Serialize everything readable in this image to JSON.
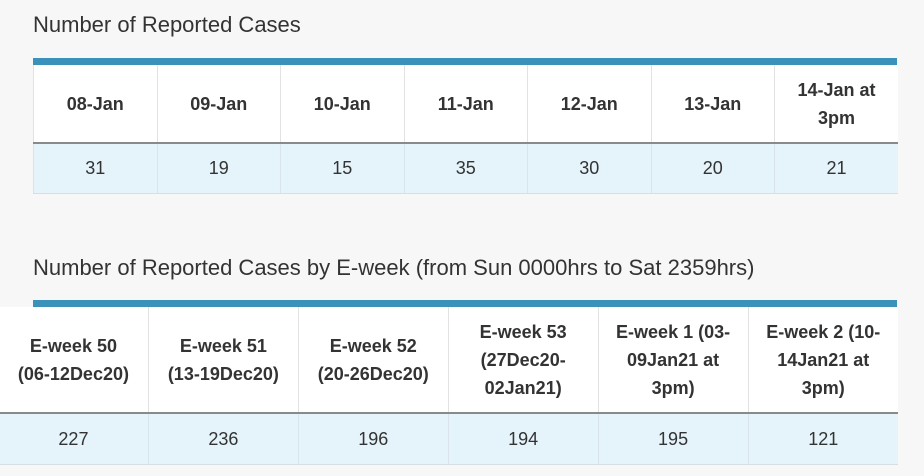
{
  "sections": [
    {
      "title": "Number of Reported Cases",
      "table": {
        "headers": [
          "08-Jan",
          "09-Jan",
          "10-Jan",
          "11-Jan",
          "12-Jan",
          "13-Jan",
          "14-Jan at 3pm"
        ],
        "rows": [
          [
            31,
            19,
            15,
            35,
            30,
            20,
            21
          ]
        ]
      }
    },
    {
      "title": "Number of Reported Cases by E-week (from Sun 0000hrs to Sat 2359hrs)",
      "table": {
        "headers": [
          "E-week 50 (06-12Dec20)",
          "E-week 51 (13-19Dec20)",
          "E-week 52 (20-26Dec20)",
          "E-week 53 (27Dec20-02Jan21)",
          "E-week 1 (03-09Jan21 at 3pm)",
          "E-week 2 (10-14Jan21 at 3pm)"
        ],
        "rows": [
          [
            227,
            236,
            196,
            194,
            195,
            121
          ]
        ]
      }
    }
  ]
}
